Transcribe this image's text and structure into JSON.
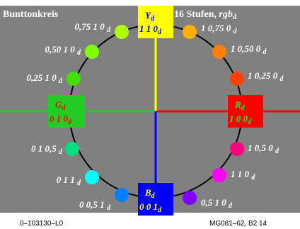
{
  "header": {
    "title": "Bunttonkreis",
    "steps": "16 Stufen, ",
    "steps_suffix": "rgb",
    "steps_sub": "d"
  },
  "footer": {
    "left": "0–103130–L0",
    "right": "MG081–62, B2  14"
  },
  "colors": {
    "background": "#808080",
    "yellow": "#ffff00",
    "red": "#ff0000",
    "green": "#22cc22",
    "blue": "#0000ff"
  },
  "axes": {
    "yellow": {
      "name": "Y",
      "sub": "d",
      "value": "1 1 0",
      "value_sub": "d"
    },
    "red": {
      "name": "R",
      "sub": "d",
      "value": "1 0 0",
      "value_sub": "d"
    },
    "green": {
      "name": "G",
      "sub": "d",
      "value": "0 1 0",
      "value_sub": "d"
    },
    "blue": {
      "name": "B",
      "sub": "d",
      "value": "0 0 1",
      "value_sub": "d"
    }
  },
  "hues": [
    {
      "label": "1 0,75 0",
      "sub": "d",
      "color": "#ffb000"
    },
    {
      "label": "1 0,50 0",
      "sub": "d",
      "color": "#ff8000"
    },
    {
      "label": "1 0,25 0",
      "sub": "d",
      "color": "#ff4000"
    },
    {
      "label": "1 0,5 0",
      "sub": "d",
      "color": "#ff0080"
    },
    {
      "label": "1 1 0",
      "sub": "d",
      "color": "#ff00ff"
    },
    {
      "label": "0,5 1 0",
      "sub": "d",
      "color": "#8000ff"
    },
    {
      "label": "0 0,5 1",
      "sub": "d",
      "color": "#0080ff"
    },
    {
      "label": "0 1 1",
      "sub": "d",
      "color": "#00ffff"
    },
    {
      "label": "0 1 0,5",
      "sub": "d",
      "color": "#00e080"
    },
    {
      "label": "0,25 1 0",
      "sub": "d",
      "color": "#40e000"
    },
    {
      "label": "0,50 1 0",
      "sub": "d",
      "color": "#80ff00"
    },
    {
      "label": "0,75 1 0",
      "sub": "d",
      "color": "#b0ff00"
    }
  ]
}
